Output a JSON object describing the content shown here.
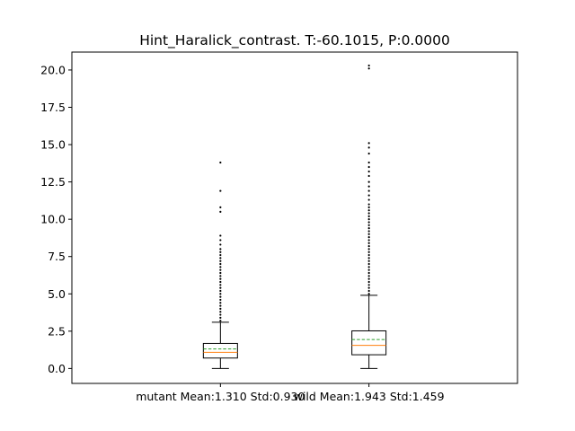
{
  "chart_data": {
    "type": "box",
    "title": "Hint_Haralick_contrast. T:-60.1015, P:0.0000",
    "xlabel": "",
    "ylabel": "",
    "ylim": [
      -1.0,
      21.2
    ],
    "yticks": [
      "0.0",
      "2.5",
      "5.0",
      "7.5",
      "10.0",
      "12.5",
      "15.0",
      "17.5",
      "20.0"
    ],
    "grid": false,
    "boxes": [
      {
        "label": "mutant Mean:1.310 Std:0.930",
        "whisker_low": 0.0,
        "q1": 0.7,
        "median": 1.08,
        "mean": 1.31,
        "q3": 1.68,
        "whisker_high": 3.1,
        "outliers": [
          3.2,
          3.4,
          3.6,
          3.8,
          4.0,
          4.2,
          4.4,
          4.6,
          4.8,
          5.0,
          5.2,
          5.4,
          5.6,
          5.8,
          6.0,
          6.2,
          6.4,
          6.6,
          6.8,
          7.0,
          7.2,
          7.4,
          7.6,
          7.8,
          8.0,
          8.3,
          8.6,
          8.9,
          10.5,
          10.8,
          11.9,
          13.8
        ]
      },
      {
        "label": "wild Mean:1.943 Std:1.459",
        "whisker_low": 0.0,
        "q1": 0.92,
        "median": 1.55,
        "mean": 1.943,
        "q3": 2.52,
        "whisker_high": 4.9,
        "outliers": [
          5.0,
          5.2,
          5.4,
          5.6,
          5.8,
          6.0,
          6.2,
          6.4,
          6.6,
          6.8,
          7.0,
          7.2,
          7.4,
          7.6,
          7.8,
          8.0,
          8.2,
          8.4,
          8.6,
          8.8,
          9.0,
          9.2,
          9.4,
          9.6,
          9.8,
          10.0,
          10.2,
          10.4,
          10.6,
          10.8,
          11.0,
          11.3,
          11.6,
          11.9,
          12.2,
          12.5,
          12.9,
          13.2,
          13.5,
          13.8,
          14.4,
          14.8,
          15.1,
          20.1,
          20.3
        ]
      }
    ],
    "colors": {
      "box": "#000000",
      "median": "#ff7f0e",
      "mean": "#2ca02c",
      "outlier": "#000000"
    }
  }
}
